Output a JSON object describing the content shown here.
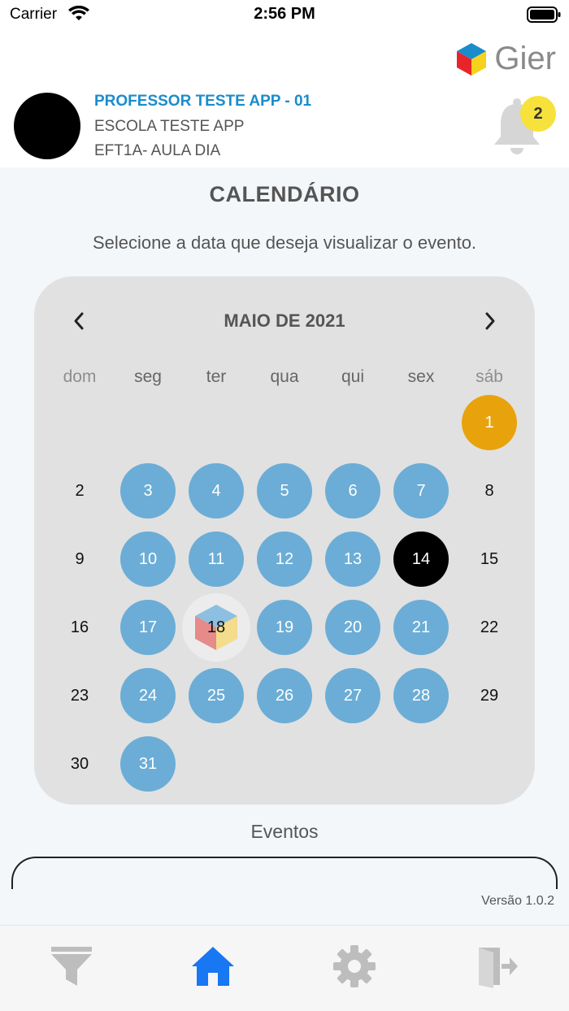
{
  "status_bar": {
    "carrier": "Carrier",
    "time": "2:56 PM"
  },
  "header": {
    "logo_text": "Gier",
    "professor": "PROFESSOR TESTE APP - 01",
    "school": "ESCOLA TESTE APP",
    "class_name": "EFT1A- AULA DIA",
    "notifications_count": "2"
  },
  "page": {
    "title": "CALENDÁRIO",
    "instruction": "Selecione a data que deseja visualizar o evento."
  },
  "calendar": {
    "month_label": "MAIO DE 2021",
    "weekdays": [
      "dom",
      "seg",
      "ter",
      "qua",
      "qui",
      "sex",
      "sáb"
    ],
    "days": [
      {
        "n": "1",
        "state": "holiday"
      },
      {
        "n": "2",
        "state": "plain"
      },
      {
        "n": "3",
        "state": "event"
      },
      {
        "n": "4",
        "state": "event"
      },
      {
        "n": "5",
        "state": "event"
      },
      {
        "n": "6",
        "state": "event"
      },
      {
        "n": "7",
        "state": "event"
      },
      {
        "n": "8",
        "state": "plain"
      },
      {
        "n": "9",
        "state": "plain"
      },
      {
        "n": "10",
        "state": "event"
      },
      {
        "n": "11",
        "state": "event"
      },
      {
        "n": "12",
        "state": "event"
      },
      {
        "n": "13",
        "state": "event"
      },
      {
        "n": "14",
        "state": "today"
      },
      {
        "n": "15",
        "state": "plain"
      },
      {
        "n": "16",
        "state": "plain"
      },
      {
        "n": "17",
        "state": "event"
      },
      {
        "n": "18",
        "state": "selected"
      },
      {
        "n": "19",
        "state": "event"
      },
      {
        "n": "20",
        "state": "event"
      },
      {
        "n": "21",
        "state": "event"
      },
      {
        "n": "22",
        "state": "plain"
      },
      {
        "n": "23",
        "state": "plain"
      },
      {
        "n": "24",
        "state": "event"
      },
      {
        "n": "25",
        "state": "event"
      },
      {
        "n": "26",
        "state": "event"
      },
      {
        "n": "27",
        "state": "event"
      },
      {
        "n": "28",
        "state": "event"
      },
      {
        "n": "29",
        "state": "plain"
      },
      {
        "n": "30",
        "state": "plain"
      },
      {
        "n": "31",
        "state": "event"
      }
    ]
  },
  "events": {
    "label": "Eventos"
  },
  "footer": {
    "version": "Versão 1.0.2"
  },
  "tabs": [
    {
      "name": "filter-icon",
      "active": false
    },
    {
      "name": "home-icon",
      "active": true
    },
    {
      "name": "gear-icon",
      "active": false
    },
    {
      "name": "logout-icon",
      "active": false
    }
  ],
  "colors": {
    "accent_blue": "#1a8ccc",
    "event_day": "#6badd6",
    "holiday_day": "#e8a30c",
    "badge": "#f7e13b",
    "active_tab": "#1877f2"
  }
}
